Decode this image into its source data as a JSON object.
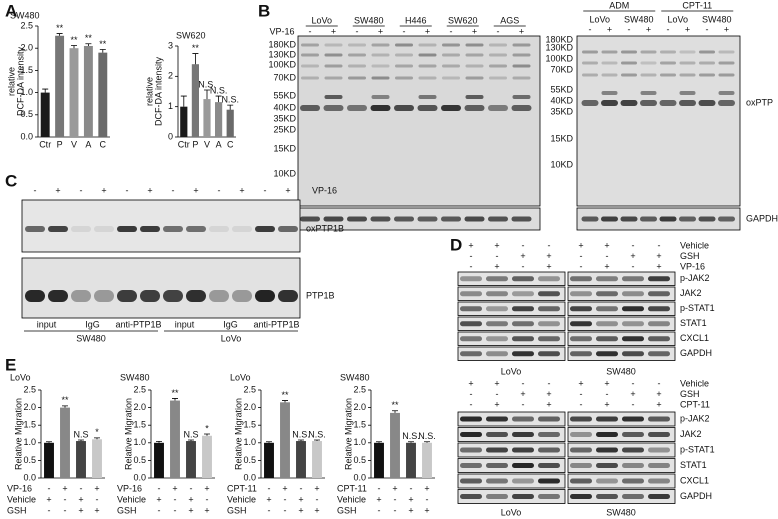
{
  "chart_data": [
    {
      "type": "bar",
      "title": "SW480",
      "ylabel": [
        "relative",
        "DCF-DA intensity"
      ],
      "categories": [
        "Ctr",
        "P",
        "V",
        "A",
        "C"
      ],
      "values": [
        1.0,
        2.28,
        2.0,
        2.05,
        1.9
      ],
      "errors": [
        0.08,
        0.05,
        0.06,
        0.05,
        0.07
      ],
      "annotations": [
        null,
        "**",
        "**",
        "**",
        "**"
      ],
      "colors": [
        "#1a1a1a",
        "#777777",
        "#9a9a9a",
        "#8a8a8a",
        "#6a6a6a"
      ],
      "ylim": [
        0,
        2.5
      ],
      "yticks": [
        {
          "value": 0,
          "label": "0.0"
        },
        0.5,
        {
          "value": 1,
          "label": "1.0"
        },
        1.5,
        {
          "value": 2,
          "label": "2.0"
        },
        2.5
      ]
    },
    {
      "type": "bar",
      "title": "SW620",
      "ylabel": [
        "relative",
        "DCF-DA intensity"
      ],
      "categories": [
        "Ctr",
        "P",
        "V",
        "A",
        "C"
      ],
      "values": [
        1.0,
        2.4,
        1.25,
        1.15,
        0.9
      ],
      "errors": [
        0.35,
        0.35,
        0.3,
        0.2,
        0.15
      ],
      "annotations": [
        null,
        "**",
        "N.S.",
        "N.S.",
        "N.S."
      ],
      "colors": [
        "#1a1a1a",
        "#777777",
        "#9a9a9a",
        "#8a8a8a",
        "#6a6a6a"
      ],
      "ylim": [
        0,
        3
      ],
      "yticks": [
        0,
        1,
        2,
        3
      ]
    },
    {
      "type": "bar",
      "title": "LoVo",
      "ylabel": "Relative Migration",
      "values": [
        1.0,
        2.0,
        1.05,
        1.1
      ],
      "errors": [
        0.03,
        0.05,
        0.03,
        0.04
      ],
      "annotations": [
        null,
        "**",
        "N.S",
        "*"
      ],
      "colors": [
        "#111111",
        "#888888",
        "#444444",
        "#c8c8c8"
      ],
      "ylim": [
        0,
        2.5
      ],
      "yticks": [
        {
          "value": 0,
          "label": "0.0"
        },
        0.5,
        {
          "value": 1,
          "label": "1.0"
        },
        1.5,
        {
          "value": 2,
          "label": "2.0"
        },
        2.5
      ],
      "treatments": [
        {
          "name": "VP-16",
          "signs": [
            "-",
            "+",
            "-",
            "+"
          ]
        },
        {
          "name": "Vehicle",
          "signs": [
            "+",
            "-",
            "+",
            "-"
          ]
        },
        {
          "name": "GSH",
          "signs": [
            "-",
            "-",
            "+",
            "+"
          ]
        }
      ]
    },
    {
      "type": "bar",
      "title": "SW480",
      "ylabel": "Relative Migration",
      "values": [
        1.0,
        2.2,
        1.05,
        1.2
      ],
      "errors": [
        0.04,
        0.06,
        0.03,
        0.05
      ],
      "annotations": [
        null,
        "**",
        "N.S",
        "*"
      ],
      "colors": [
        "#111111",
        "#888888",
        "#444444",
        "#c8c8c8"
      ],
      "ylim": [
        0,
        2.5
      ],
      "yticks": [
        {
          "value": 0,
          "label": "0.0"
        },
        0.5,
        {
          "value": 1,
          "label": "1.0"
        },
        1.5,
        {
          "value": 2,
          "label": "2.0"
        },
        2.5
      ],
      "treatments": [
        {
          "name": "VP-16",
          "signs": [
            "-",
            "+",
            "-",
            "+"
          ]
        },
        {
          "name": "Vehicle",
          "signs": [
            "+",
            "-",
            "+",
            "-"
          ]
        },
        {
          "name": "GSH",
          "signs": [
            "-",
            "-",
            "+",
            "+"
          ]
        }
      ]
    },
    {
      "type": "bar",
      "title": "LoVo",
      "ylabel": "Relative Migration",
      "values": [
        1.0,
        2.15,
        1.05,
        1.05
      ],
      "errors": [
        0.03,
        0.05,
        0.03,
        0.03
      ],
      "annotations": [
        null,
        "**",
        "N.S.",
        "N.S."
      ],
      "colors": [
        "#111111",
        "#888888",
        "#444444",
        "#c8c8c8"
      ],
      "ylim": [
        0,
        2.5
      ],
      "yticks": [
        {
          "value": 0,
          "label": "0.0"
        },
        0.5,
        {
          "value": 1,
          "label": "1.0"
        },
        1.5,
        {
          "value": 2,
          "label": "2.0"
        },
        2.5
      ],
      "treatments": [
        {
          "name": "CPT-11",
          "signs": [
            "-",
            "+",
            "-",
            "+"
          ]
        },
        {
          "name": "Vehicle",
          "signs": [
            "+",
            "-",
            "+",
            "-"
          ]
        },
        {
          "name": "GSH",
          "signs": [
            "-",
            "-",
            "+",
            "+"
          ]
        }
      ]
    },
    {
      "type": "bar",
      "title": "SW480",
      "ylabel": "Relative Migration",
      "values": [
        1.0,
        1.85,
        1.0,
        1.0
      ],
      "errors": [
        0.03,
        0.06,
        0.03,
        0.03
      ],
      "annotations": [
        null,
        "**",
        "N.S.",
        "N.S."
      ],
      "colors": [
        "#111111",
        "#888888",
        "#444444",
        "#c8c8c8"
      ],
      "ylim": [
        0,
        2.5
      ],
      "yticks": [
        {
          "value": 0,
          "label": "0.0"
        },
        0.5,
        {
          "value": 1,
          "label": "1.0"
        },
        1.5,
        {
          "value": 2,
          "label": "2.0"
        },
        2.5
      ],
      "treatments": [
        {
          "name": "CPT-11",
          "signs": [
            "-",
            "+",
            "-",
            "+"
          ]
        },
        {
          "name": "Vehicle",
          "signs": [
            "+",
            "-",
            "+",
            "-"
          ]
        },
        {
          "name": "GSH",
          "signs": [
            "-",
            "-",
            "+",
            "+"
          ]
        }
      ]
    }
  ],
  "panel_labels": [
    "A",
    "B",
    "C",
    "D",
    "E"
  ],
  "blot_b": {
    "treatment": "VP-16",
    "cell_lines": [
      "LoVo",
      "SW480",
      "H446",
      "SW620",
      "AGS"
    ],
    "signs": [
      "-",
      "+",
      "-",
      "+",
      "-",
      "+",
      "-",
      "+",
      "-",
      "+"
    ],
    "markers": [
      "180KD",
      "130KD",
      "100KD",
      "70KD",
      "55KD",
      "40KD",
      "35KD",
      "25KD",
      "15KD",
      "10KD"
    ],
    "right_groups": [
      "ADM",
      "CPT-11"
    ],
    "right_cell_lines": [
      "LoVo",
      "SW480",
      "LoVo",
      "SW480"
    ],
    "right_signs": [
      "-",
      "+",
      "-",
      "+",
      "-",
      "+",
      "-",
      "+"
    ],
    "right_markers": [
      "180KD",
      "130KD",
      "100KD",
      "70KD",
      "55KD",
      "40KD",
      "35KD",
      "15KD",
      "10KD"
    ],
    "band_labels": [
      "oxPTP",
      "GAPDH"
    ]
  },
  "blot_c": {
    "treatment": "VP-16",
    "signs": [
      "-",
      "+",
      "-",
      "+",
      "-",
      "+",
      "-",
      "+",
      "-",
      "+",
      "-",
      "+"
    ],
    "band_labels": [
      "oxPTP1B",
      "PTP1B"
    ],
    "lanes": [
      "input",
      "IgG",
      "anti-PTP1B",
      "input",
      "IgG",
      "anti-PTP1B"
    ],
    "groups": [
      "SW480",
      "LoVo"
    ]
  },
  "blot_d": [
    {
      "rows": [
        {
          "name": "Vehicle",
          "signs": [
            "+",
            "+",
            "-",
            "-",
            "+",
            "+",
            "-",
            "-"
          ]
        },
        {
          "name": "GSH",
          "signs": [
            "-",
            "-",
            "+",
            "+",
            "-",
            "-",
            "+",
            "+"
          ]
        },
        {
          "name": "VP-16",
          "signs": [
            "-",
            "+",
            "-",
            "+",
            "-",
            "+",
            "-",
            "+"
          ]
        }
      ],
      "band_labels": [
        "p-JAK2",
        "JAK2",
        "p-STAT1",
        "STAT1",
        "CXCL1",
        "GAPDH"
      ],
      "groups": [
        "LoVo",
        "SW480"
      ]
    },
    {
      "rows": [
        {
          "name": "Vehicle",
          "signs": [
            "+",
            "+",
            "-",
            "-",
            "+",
            "+",
            "-",
            "-"
          ]
        },
        {
          "name": "GSH",
          "signs": [
            "-",
            "-",
            "+",
            "+",
            "-",
            "-",
            "+",
            "+"
          ]
        },
        {
          "name": "CPT-11",
          "signs": [
            "-",
            "+",
            "-",
            "+",
            "-",
            "+",
            "-",
            "+"
          ]
        }
      ],
      "band_labels": [
        "p-JAK2",
        "JAK2",
        "p-STAT1",
        "STAT1",
        "CXCL1",
        "GAPDH"
      ],
      "groups": [
        "LoVo",
        "SW480"
      ]
    }
  ]
}
